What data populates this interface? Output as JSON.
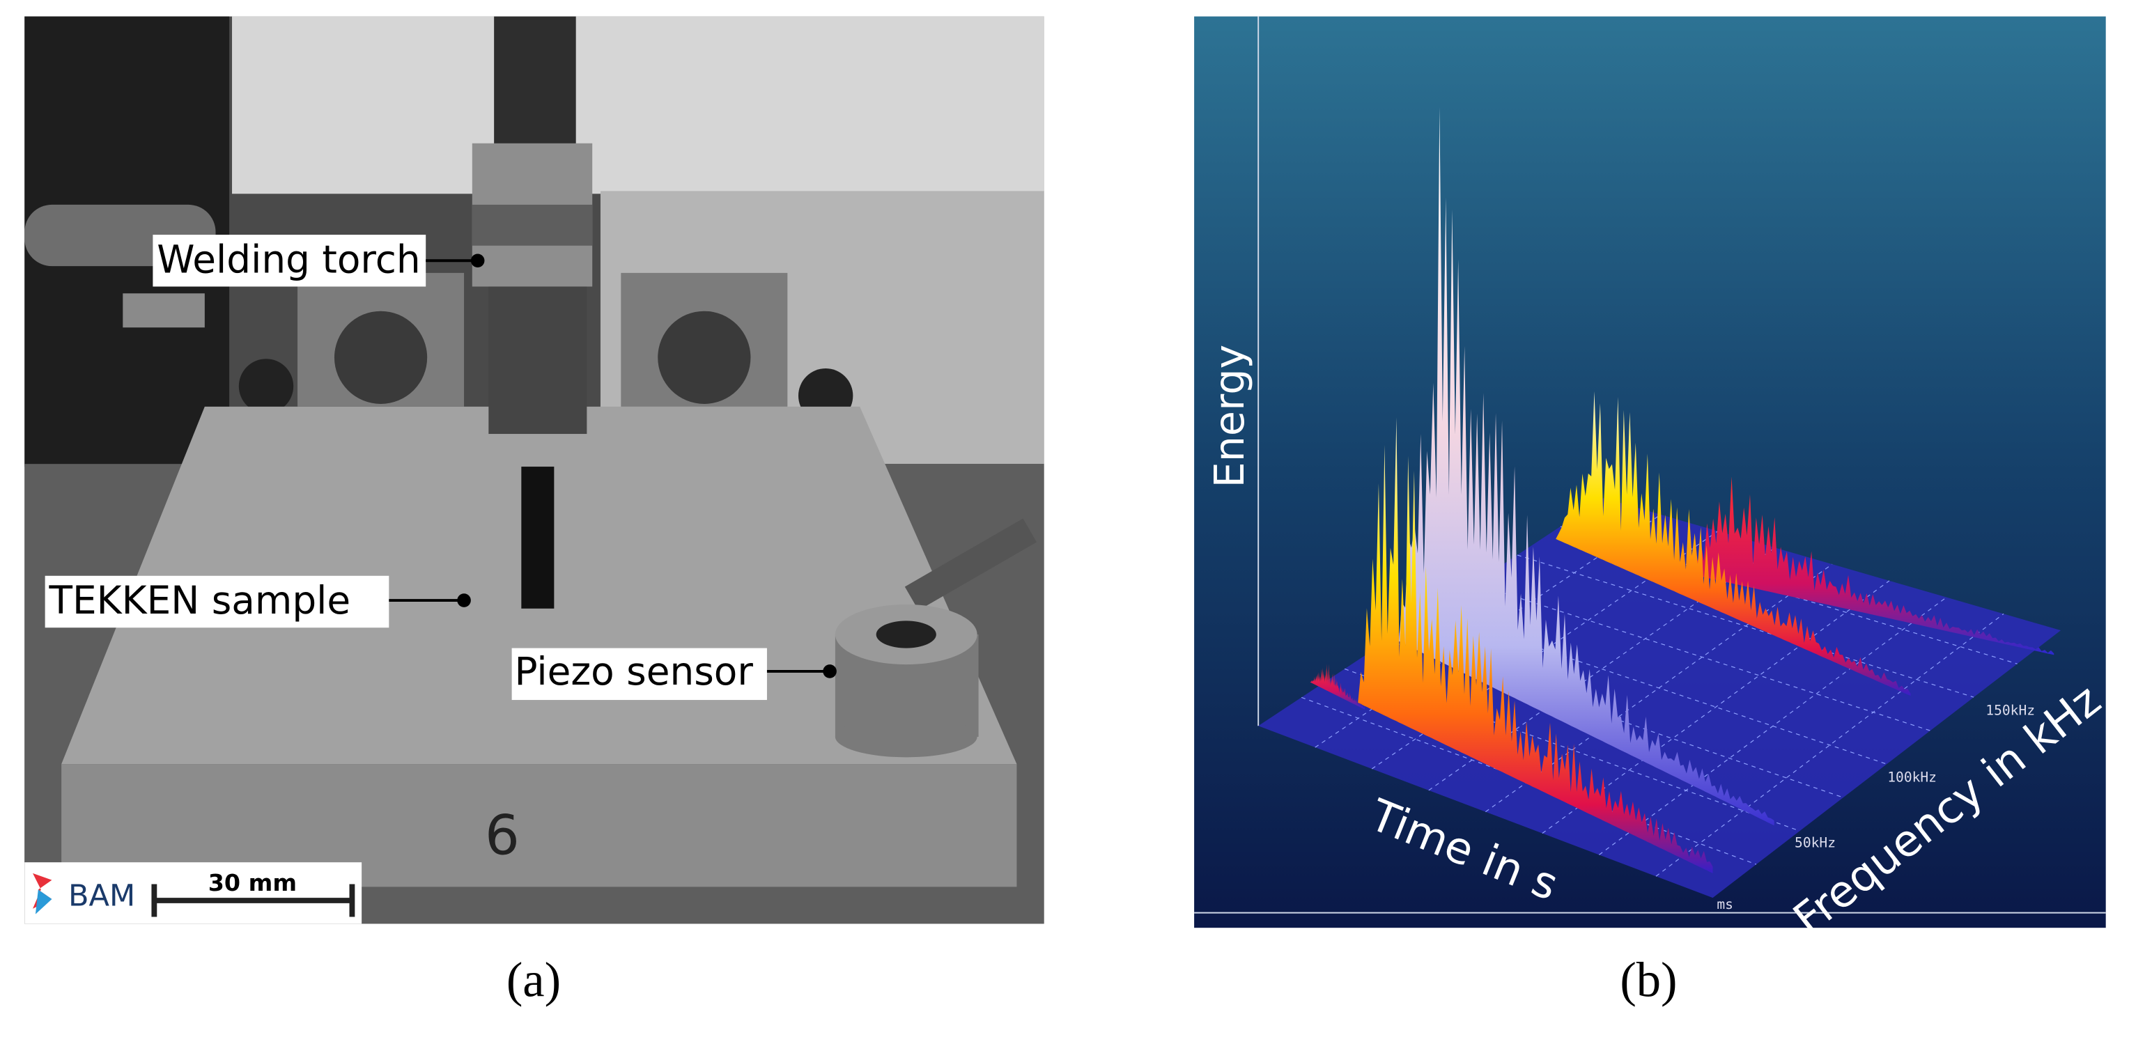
{
  "panel_a": {
    "labels": {
      "welding_torch": "Welding torch",
      "tekken_sample": "TEKKEN sample",
      "piezo_sensor": "Piezo sensor"
    },
    "plate_number": "6",
    "logo": "BAM",
    "scale_bar": "30 mm",
    "caption": "(a)"
  },
  "panel_b": {
    "y_label": "Energy",
    "x_label": "Time in s",
    "z_label": "Frequency in kHz",
    "frequency_ticks": [
      "150kHz",
      "100kHz",
      "50kHz"
    ],
    "time_unit": "ms",
    "caption": "(b)"
  }
}
